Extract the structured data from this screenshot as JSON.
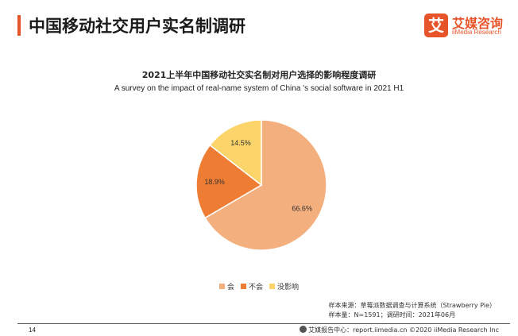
{
  "header": {
    "title": "中国移动社交用户实名制调研"
  },
  "logo": {
    "mark": "艾",
    "name_cn": "艾媒咨询",
    "name_en": "iiMedia Research"
  },
  "chart_data": {
    "type": "pie",
    "title": "2021上半年中国移动社交实名制对用户选择的影响程度调研",
    "subtitle": "A survey on the impact of real-name system of China 's social software in 2021 H1",
    "categories": [
      "会",
      "不会",
      "没影响"
    ],
    "values": [
      66.6,
      18.9,
      14.5
    ],
    "labels": [
      "66.6%",
      "18.9%",
      "14.5%"
    ],
    "colors": [
      "#f4af7f",
      "#ee7d33",
      "#fbd569"
    ],
    "legend_position": "bottom"
  },
  "source": {
    "line1": "样本来源：草莓派数据调查与计算系统（Strawberry Pie）",
    "line2": "样本量：N=1591；调研时间：2021年06月"
  },
  "footer": {
    "page": "14",
    "text": "艾媒报告中心：report.iimedia.cn  ©2020  iiMedia Research  Inc"
  }
}
